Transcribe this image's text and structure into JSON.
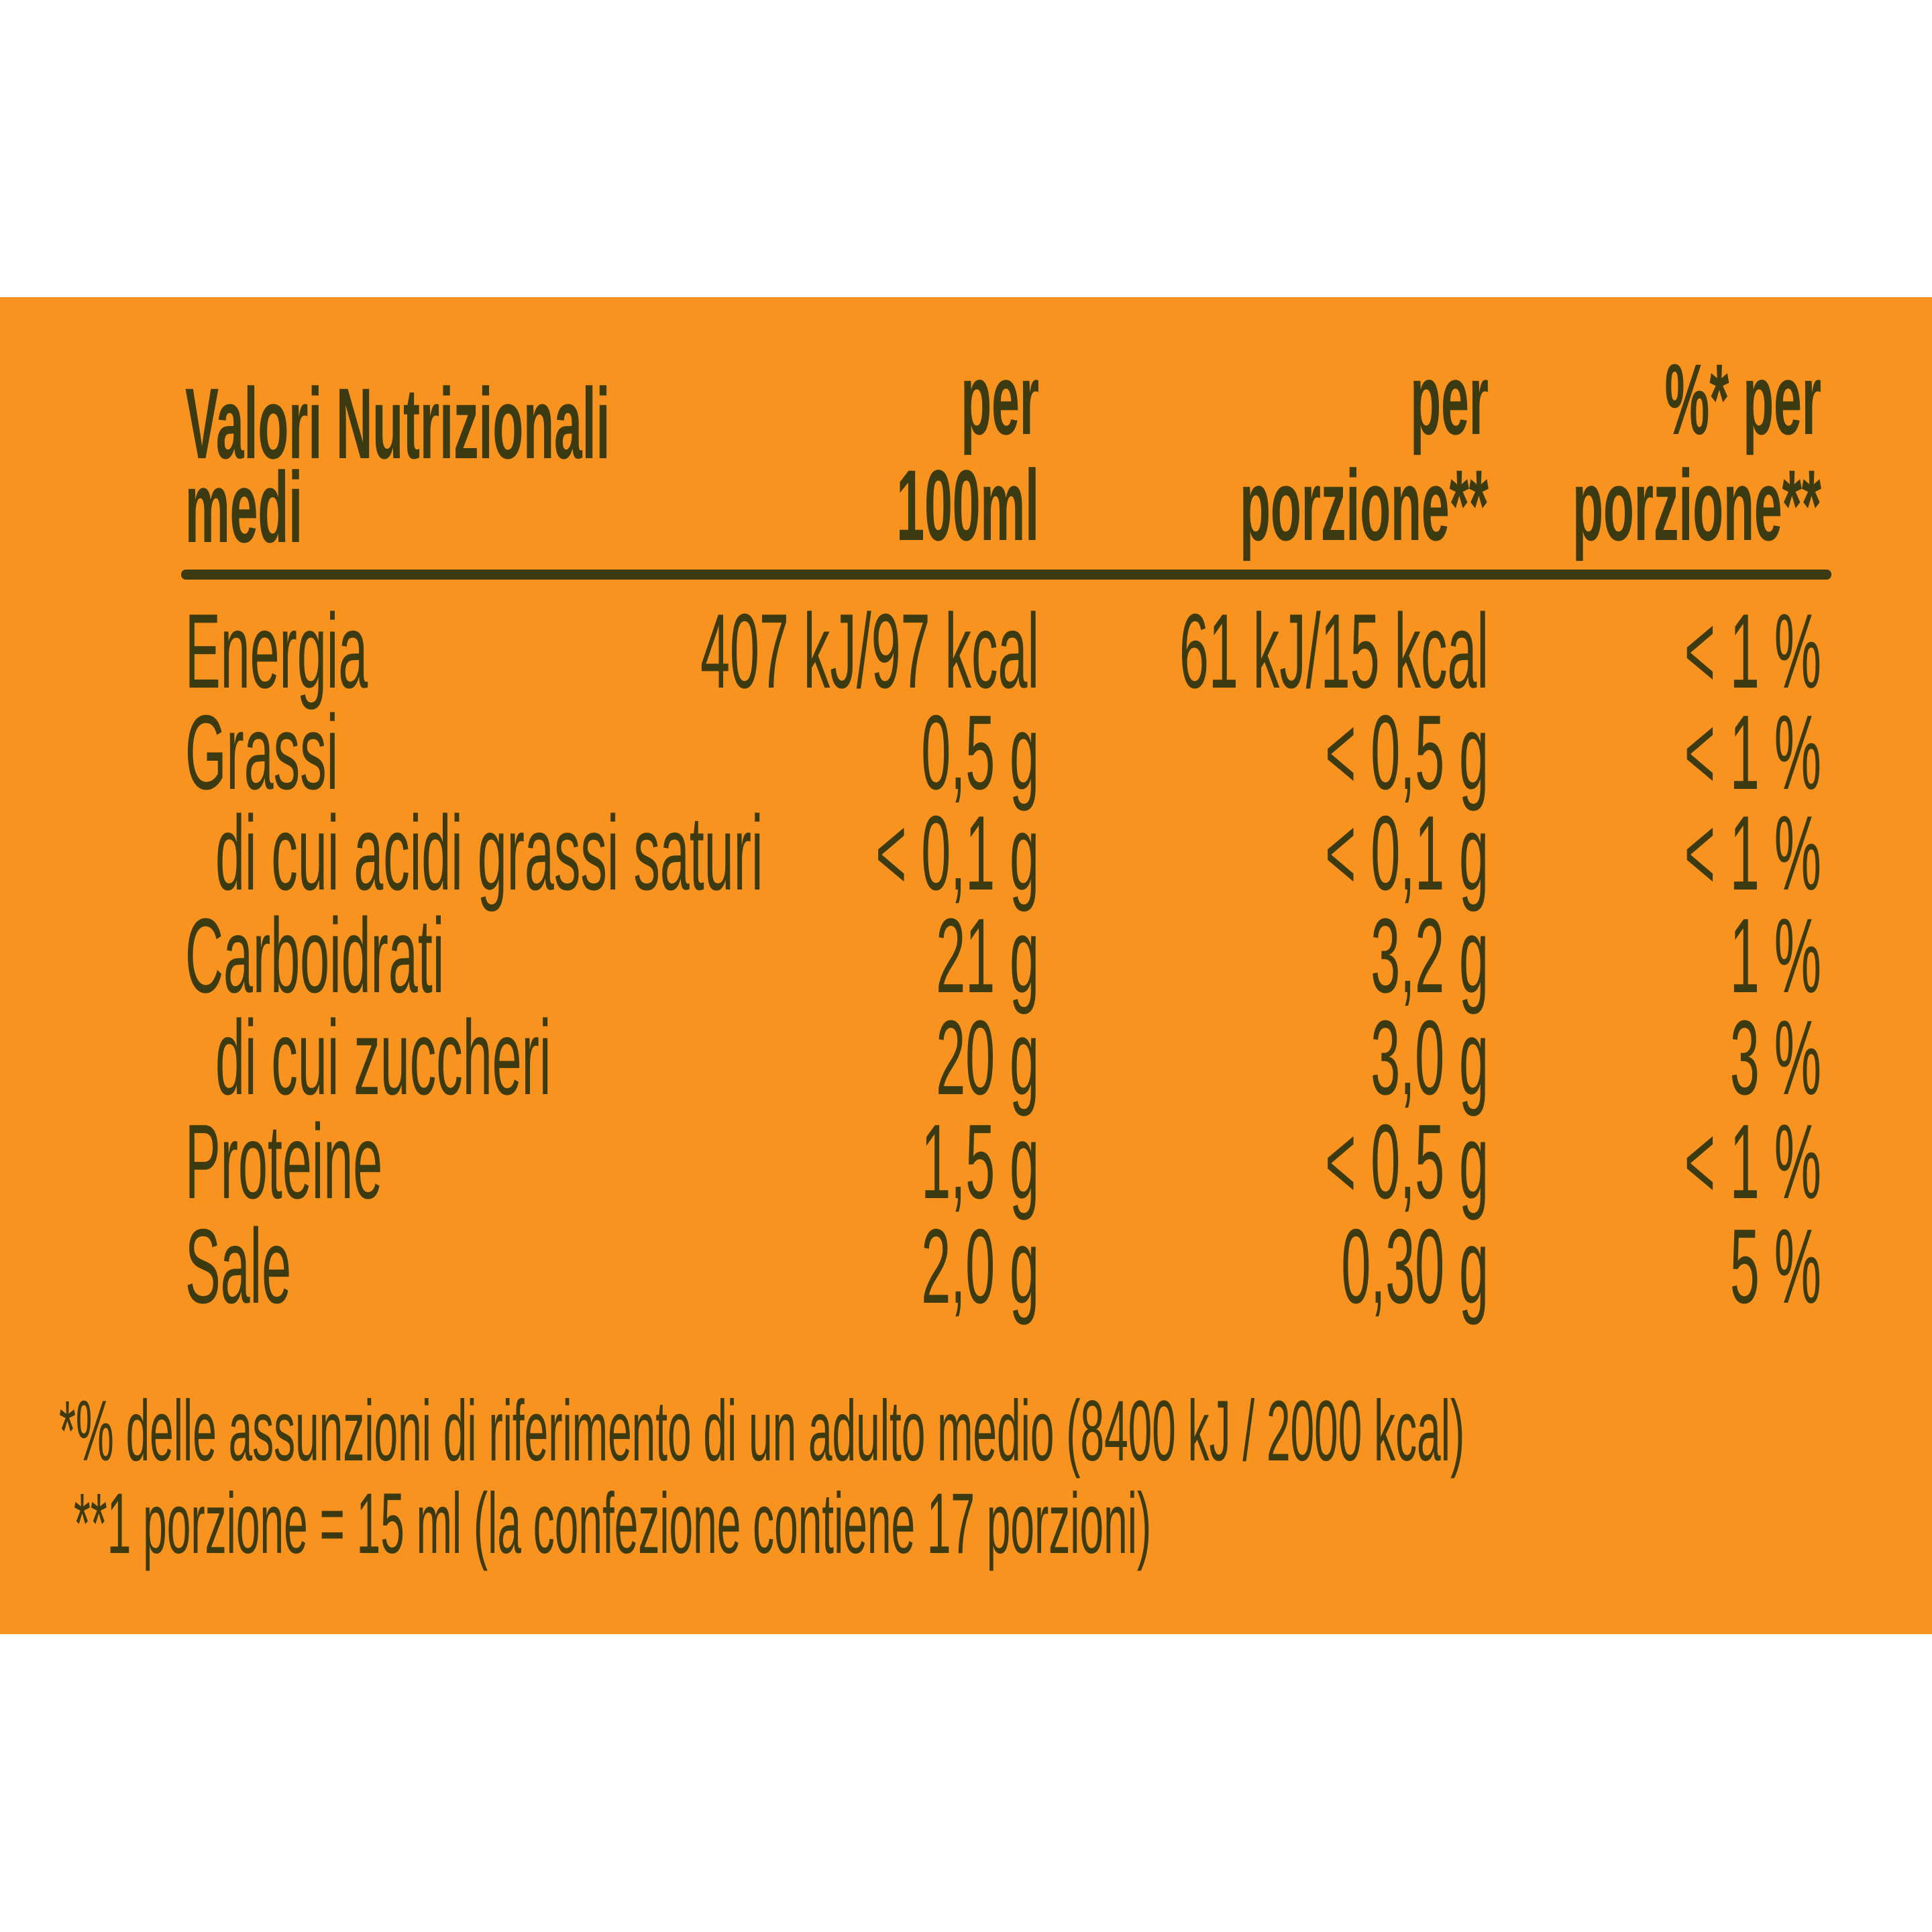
{
  "header": {
    "title": [
      "Valori Nutrizionali",
      "medi"
    ],
    "columns": [
      [
        "per",
        "100ml"
      ],
      [
        "per",
        "porzione**"
      ],
      [
        "%* per",
        "porzione**"
      ]
    ]
  },
  "table": {
    "rows": [
      [
        "Energia",
        "407 kJ/97 kcal",
        "61 kJ/15 kcal",
        "< 1 %"
      ],
      [
        "Grassi",
        "0,5 g",
        "< 0,5 g",
        "< 1 %"
      ],
      [
        "di cui acidi grassi saturi",
        "< 0,1 g",
        "< 0,1 g",
        "< 1 %"
      ],
      [
        "Carboidrati",
        "21 g",
        "3,2 g",
        "1 %"
      ],
      [
        "di cui zuccheri",
        "20 g",
        "3,0 g",
        "3 %"
      ],
      [
        "Proteine",
        "1,5 g",
        "< 0,5 g",
        "< 1 %"
      ],
      [
        "Sale",
        "2,0 g",
        "0,30 g",
        "5 %"
      ]
    ]
  },
  "footnotes": [
    "*% delle assunzioni di riferimento di un adulto medio (8400 kJ / 2000 kcal)",
    "**1 porzione = 15 ml (la confezione contiene 17 porzioni)"
  ]
}
